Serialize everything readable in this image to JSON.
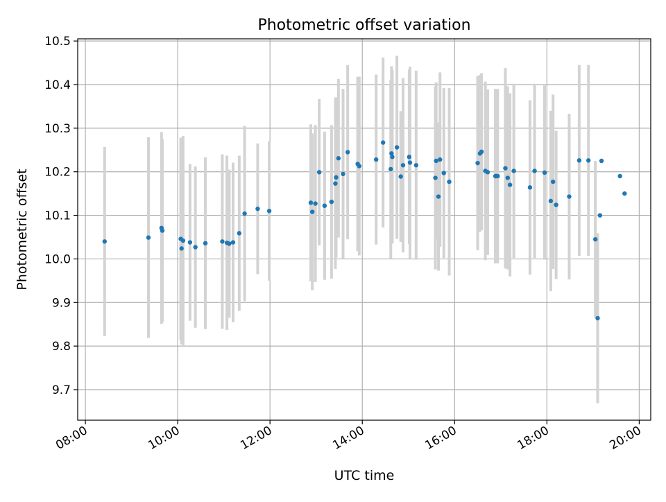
{
  "chart_data": {
    "type": "scatter",
    "title": "Photometric offset variation",
    "xlabel": "UTC time",
    "ylabel": "Photometric offset",
    "xlim": [
      "07:50",
      "20:15"
    ],
    "ylim": [
      9.63,
      10.505
    ],
    "x_ticks": [
      "08:00",
      "10:00",
      "12:00",
      "14:00",
      "16:00",
      "18:00",
      "20:00"
    ],
    "y_ticks": [
      "9.7",
      "9.8",
      "9.9",
      "10.0",
      "10.1",
      "10.2",
      "10.3",
      "10.4",
      "10.5"
    ],
    "grid": true,
    "legend": "none",
    "colors": {
      "point": "#1f77b4",
      "error_bar": "#d3d3d3",
      "grid": "#b0b0b0",
      "axis": "#000000"
    },
    "series": [
      {
        "x": [
          "08:25",
          "09:22",
          "09:39",
          "09:40",
          "10:04",
          "10:05",
          "10:07",
          "10:16",
          "10:23",
          "10:36",
          "10:58",
          "11:04",
          "11:07",
          "11:12",
          "11:20",
          "11:27",
          "11:44",
          "11:59",
          "12:53",
          "12:55",
          "12:59",
          "13:04",
          "13:11",
          "13:20",
          "13:25",
          "13:26",
          "13:29",
          "13:35",
          "13:41",
          "13:54",
          "13:56",
          "14:18",
          "14:27",
          "14:37",
          "14:38",
          "14:39",
          "14:45",
          "14:50",
          "14:53",
          "15:01",
          "15:02",
          "15:10",
          "15:35",
          "15:36",
          "15:39",
          "15:41",
          "15:46",
          "15:53",
          "16:30",
          "16:33",
          "16:35",
          "16:40",
          "16:43",
          "16:53",
          "16:54",
          "16:56",
          "17:06",
          "17:09",
          "17:12",
          "17:17",
          "17:38",
          "17:44",
          "17:57",
          "18:05",
          "18:08",
          "18:12",
          "18:29",
          "18:42",
          "18:54",
          "19:03",
          "19:06",
          "19:09",
          "19:11",
          "19:35",
          "19:41"
        ],
        "y": [
          10.04,
          10.049,
          10.071,
          10.065,
          10.046,
          10.024,
          10.042,
          10.038,
          10.027,
          10.036,
          10.04,
          10.037,
          10.035,
          10.038,
          10.059,
          10.104,
          10.115,
          10.11,
          10.129,
          10.108,
          10.127,
          10.199,
          10.122,
          10.131,
          10.173,
          10.187,
          10.231,
          10.195,
          10.245,
          10.218,
          10.213,
          10.228,
          10.267,
          10.206,
          10.242,
          10.234,
          10.256,
          10.189,
          10.215,
          10.234,
          10.221,
          10.215,
          10.186,
          10.225,
          10.143,
          10.228,
          10.197,
          10.177,
          10.22,
          10.242,
          10.246,
          10.202,
          10.199,
          10.19,
          10.19,
          10.19,
          10.208,
          10.186,
          10.17,
          10.202,
          10.164,
          10.202,
          10.198,
          10.133,
          10.177,
          10.124,
          10.143,
          10.226,
          10.226,
          10.045,
          9.864,
          10.1,
          10.225,
          10.19,
          10.15
        ],
        "yerr": [
          0.217,
          0.23,
          0.22,
          0.21,
          0.232,
          0.22,
          0.24,
          0.18,
          0.185,
          0.197,
          0.2,
          0.2,
          0.17,
          0.183,
          0.178,
          0.201,
          0.15,
          0.16,
          0.18,
          0.18,
          0.18,
          0.168,
          0.17,
          0.176,
          0.196,
          0.184,
          0.182,
          0.195,
          0.2,
          0.2,
          0.205,
          0.195,
          0.195,
          0.205,
          0.2,
          0.199,
          0.21,
          0.15,
          0.2,
          0.2,
          0.22,
          0.217,
          0.21,
          0.18,
          0.17,
          0.2,
          0.195,
          0.215,
          0.2,
          0.18,
          0.18,
          0.205,
          0.19,
          0.2,
          0.2,
          0.2,
          0.23,
          0.21,
          0.21,
          0.2,
          0.2,
          0.2,
          0.2,
          0.207,
          0.2,
          0.17,
          0.19,
          0.219,
          0.219,
          0.18,
          0.195,
          0.0,
          0.0,
          0.0,
          0.0
        ]
      }
    ]
  }
}
